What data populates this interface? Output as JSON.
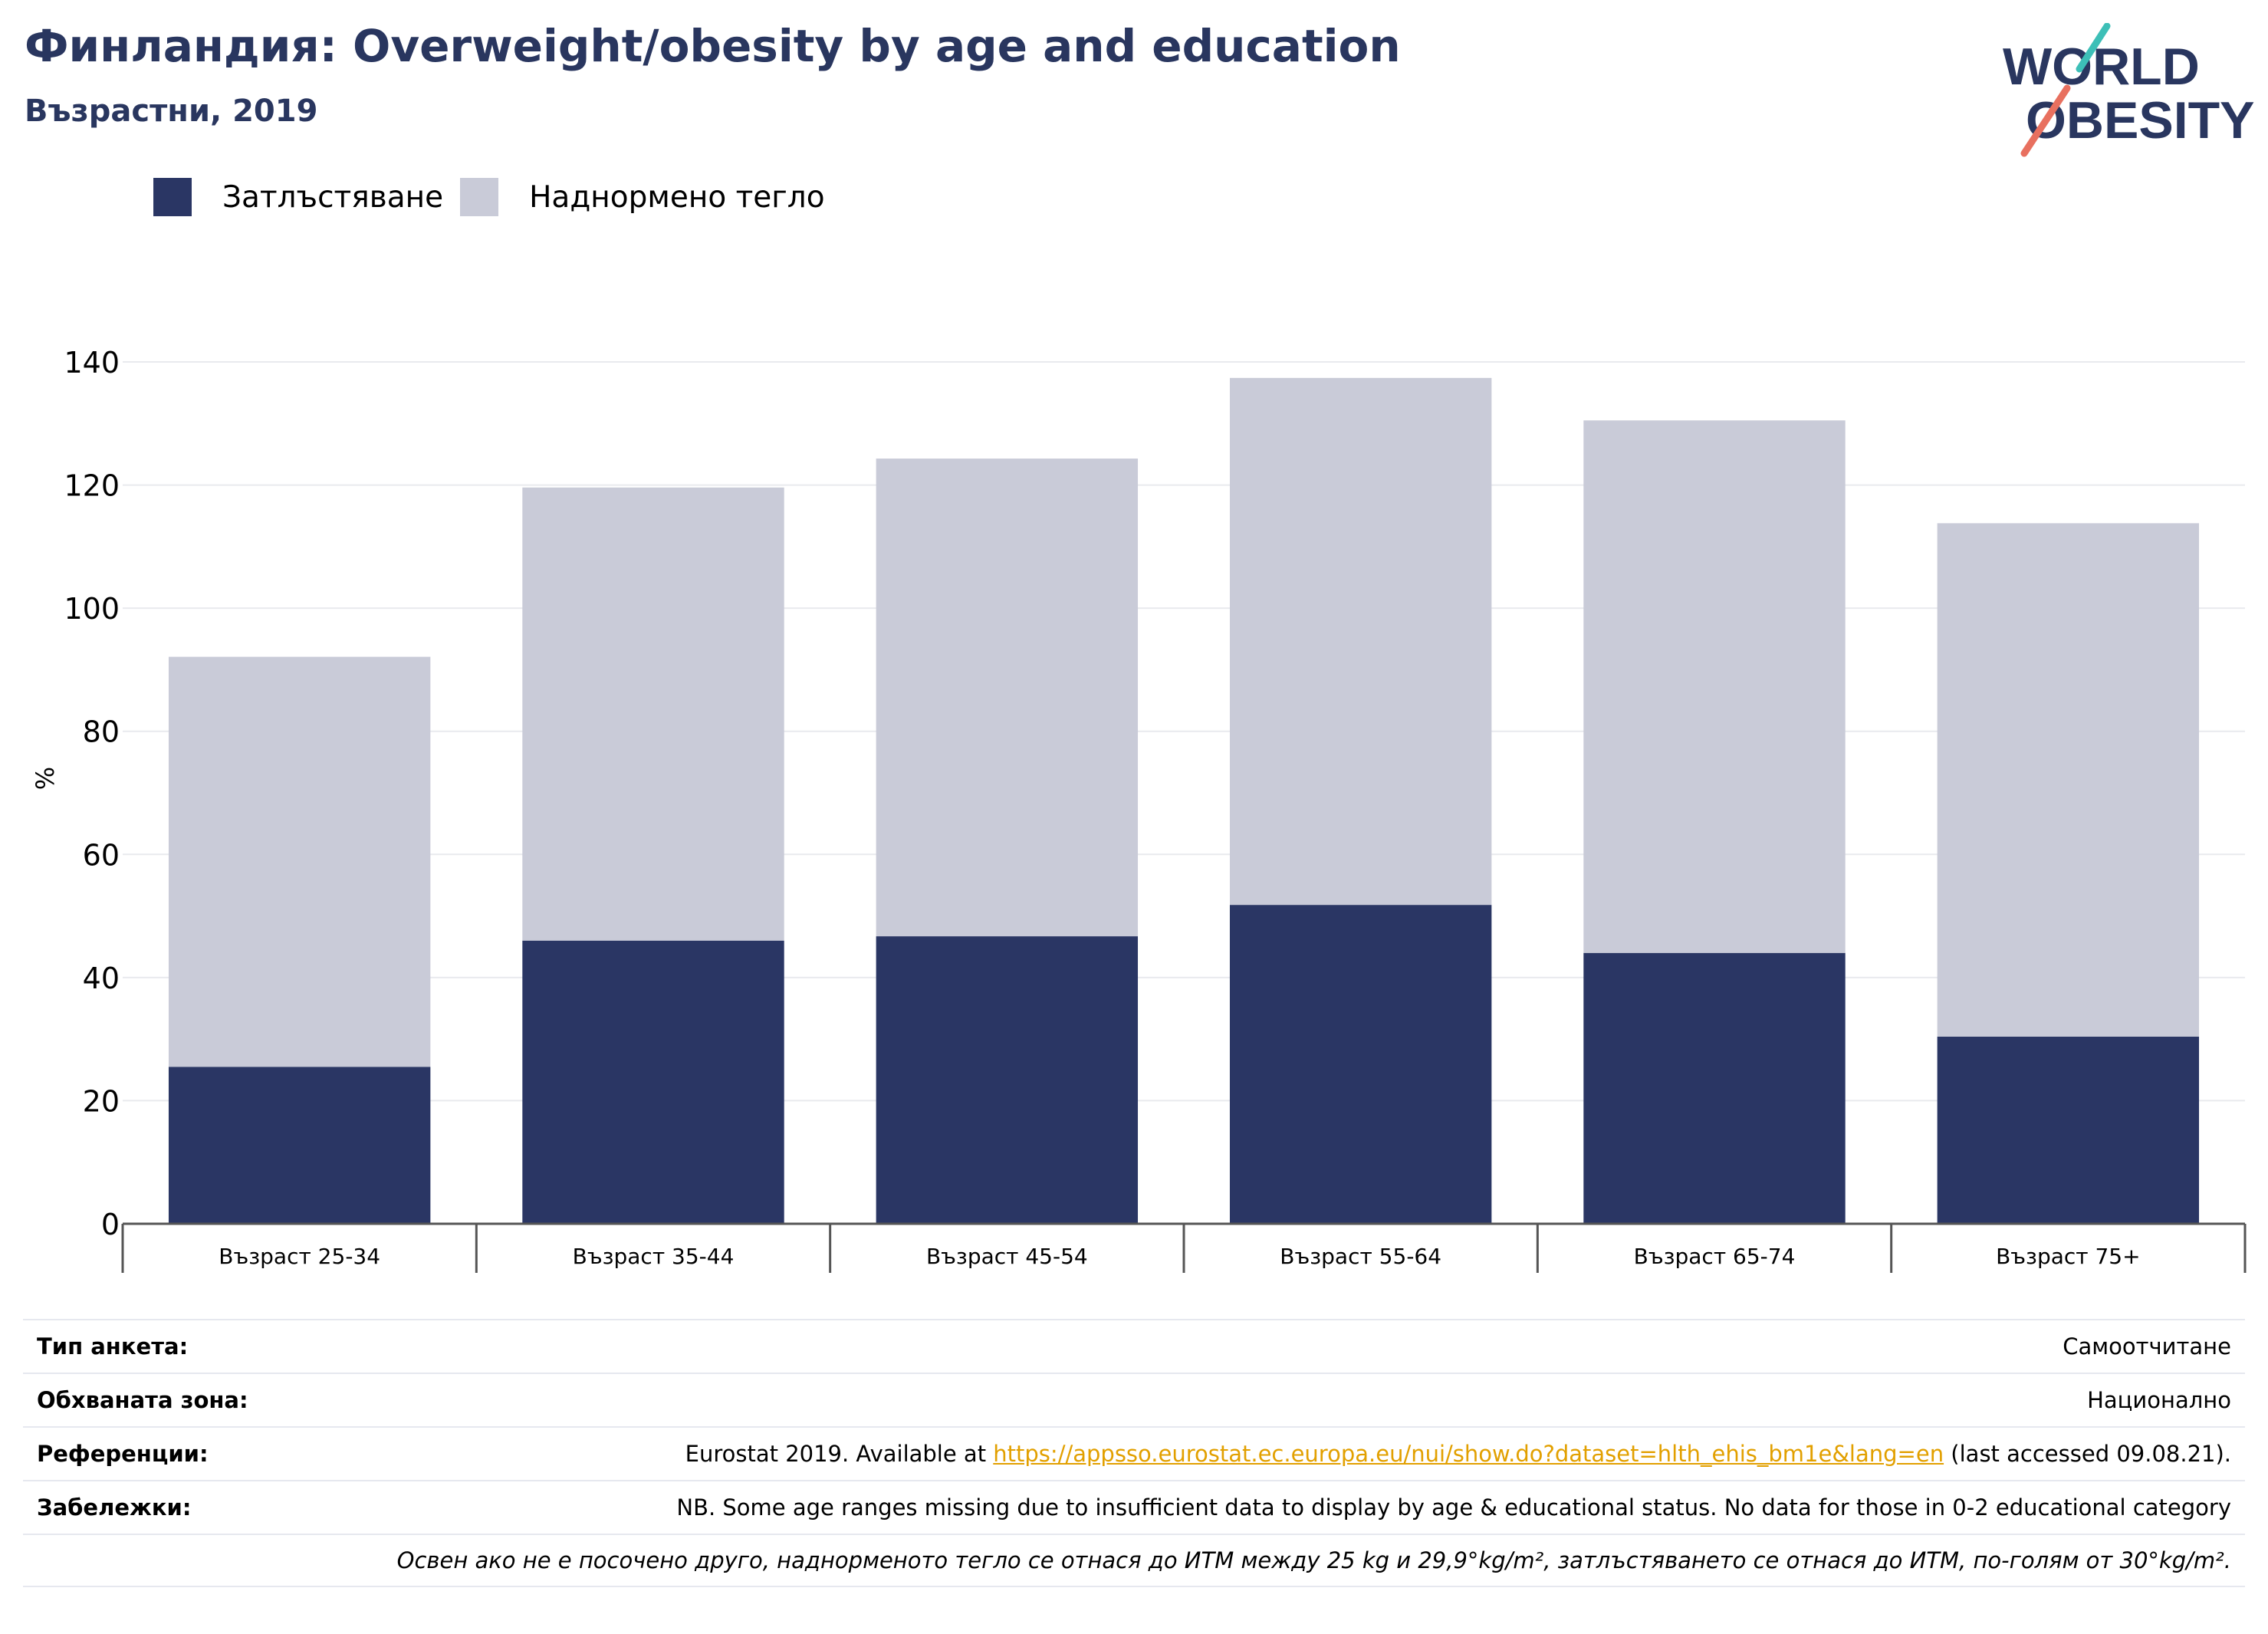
{
  "header": {
    "title": "Финландия: Overweight/obesity by age and education",
    "subtitle": "Възрастни, 2019"
  },
  "logo": {
    "line1": "WORLD",
    "line2": "OBESITY"
  },
  "colors": {
    "obesity": "#2a3664",
    "overweight": "#c9cbd8",
    "title": "#29365f",
    "link": "#e2a000"
  },
  "chart_data": {
    "type": "bar",
    "stacked": true,
    "categories": [
      "Възраст 25-34",
      "Възраст 35-44",
      "Възраст 45-54",
      "Възраст 55-64",
      "Възраст 65-74",
      "Възраст 75+"
    ],
    "series": [
      {
        "name": "Затлъстяване",
        "values": [
          25.5,
          46,
          46.7,
          51.8,
          44,
          30.4
        ]
      },
      {
        "name": "Наднормено тегло",
        "values": [
          66.6,
          73.6,
          77.6,
          85.6,
          86.5,
          83.4
        ]
      }
    ],
    "ylabel": "%",
    "ylim": [
      0,
      140
    ],
    "yticks": [
      0,
      20,
      40,
      60,
      80,
      100,
      120,
      140
    ],
    "grid": true,
    "legend": "top-left"
  },
  "info": {
    "survey_label": "Тип анкета:",
    "survey_value": "Самоотчитане",
    "area_label": "Обхваната зона:",
    "area_value": "Национално",
    "refs_label": "Референции:",
    "refs_prefix": "Eurostat 2019. Available at ",
    "refs_link": "https://appsso.eurostat.ec.europa.eu/nui/show.do?dataset=hlth_ehis_bm1e&lang=en",
    "refs_suffix": " (last accessed 09.08.21).",
    "notes_label": "Забележки:",
    "notes_value": "NB. Some age ranges missing due to insufficient data to display by age & educational status. No data for those in 0-2 educational category",
    "definition": "Освен ако не е посочено друго, наднорменото тегло се отнася до ИТМ между 25 kg и 29,9°kg/m², затлъстяването се отнася до ИТМ, по-голям от 30°kg/m²."
  }
}
